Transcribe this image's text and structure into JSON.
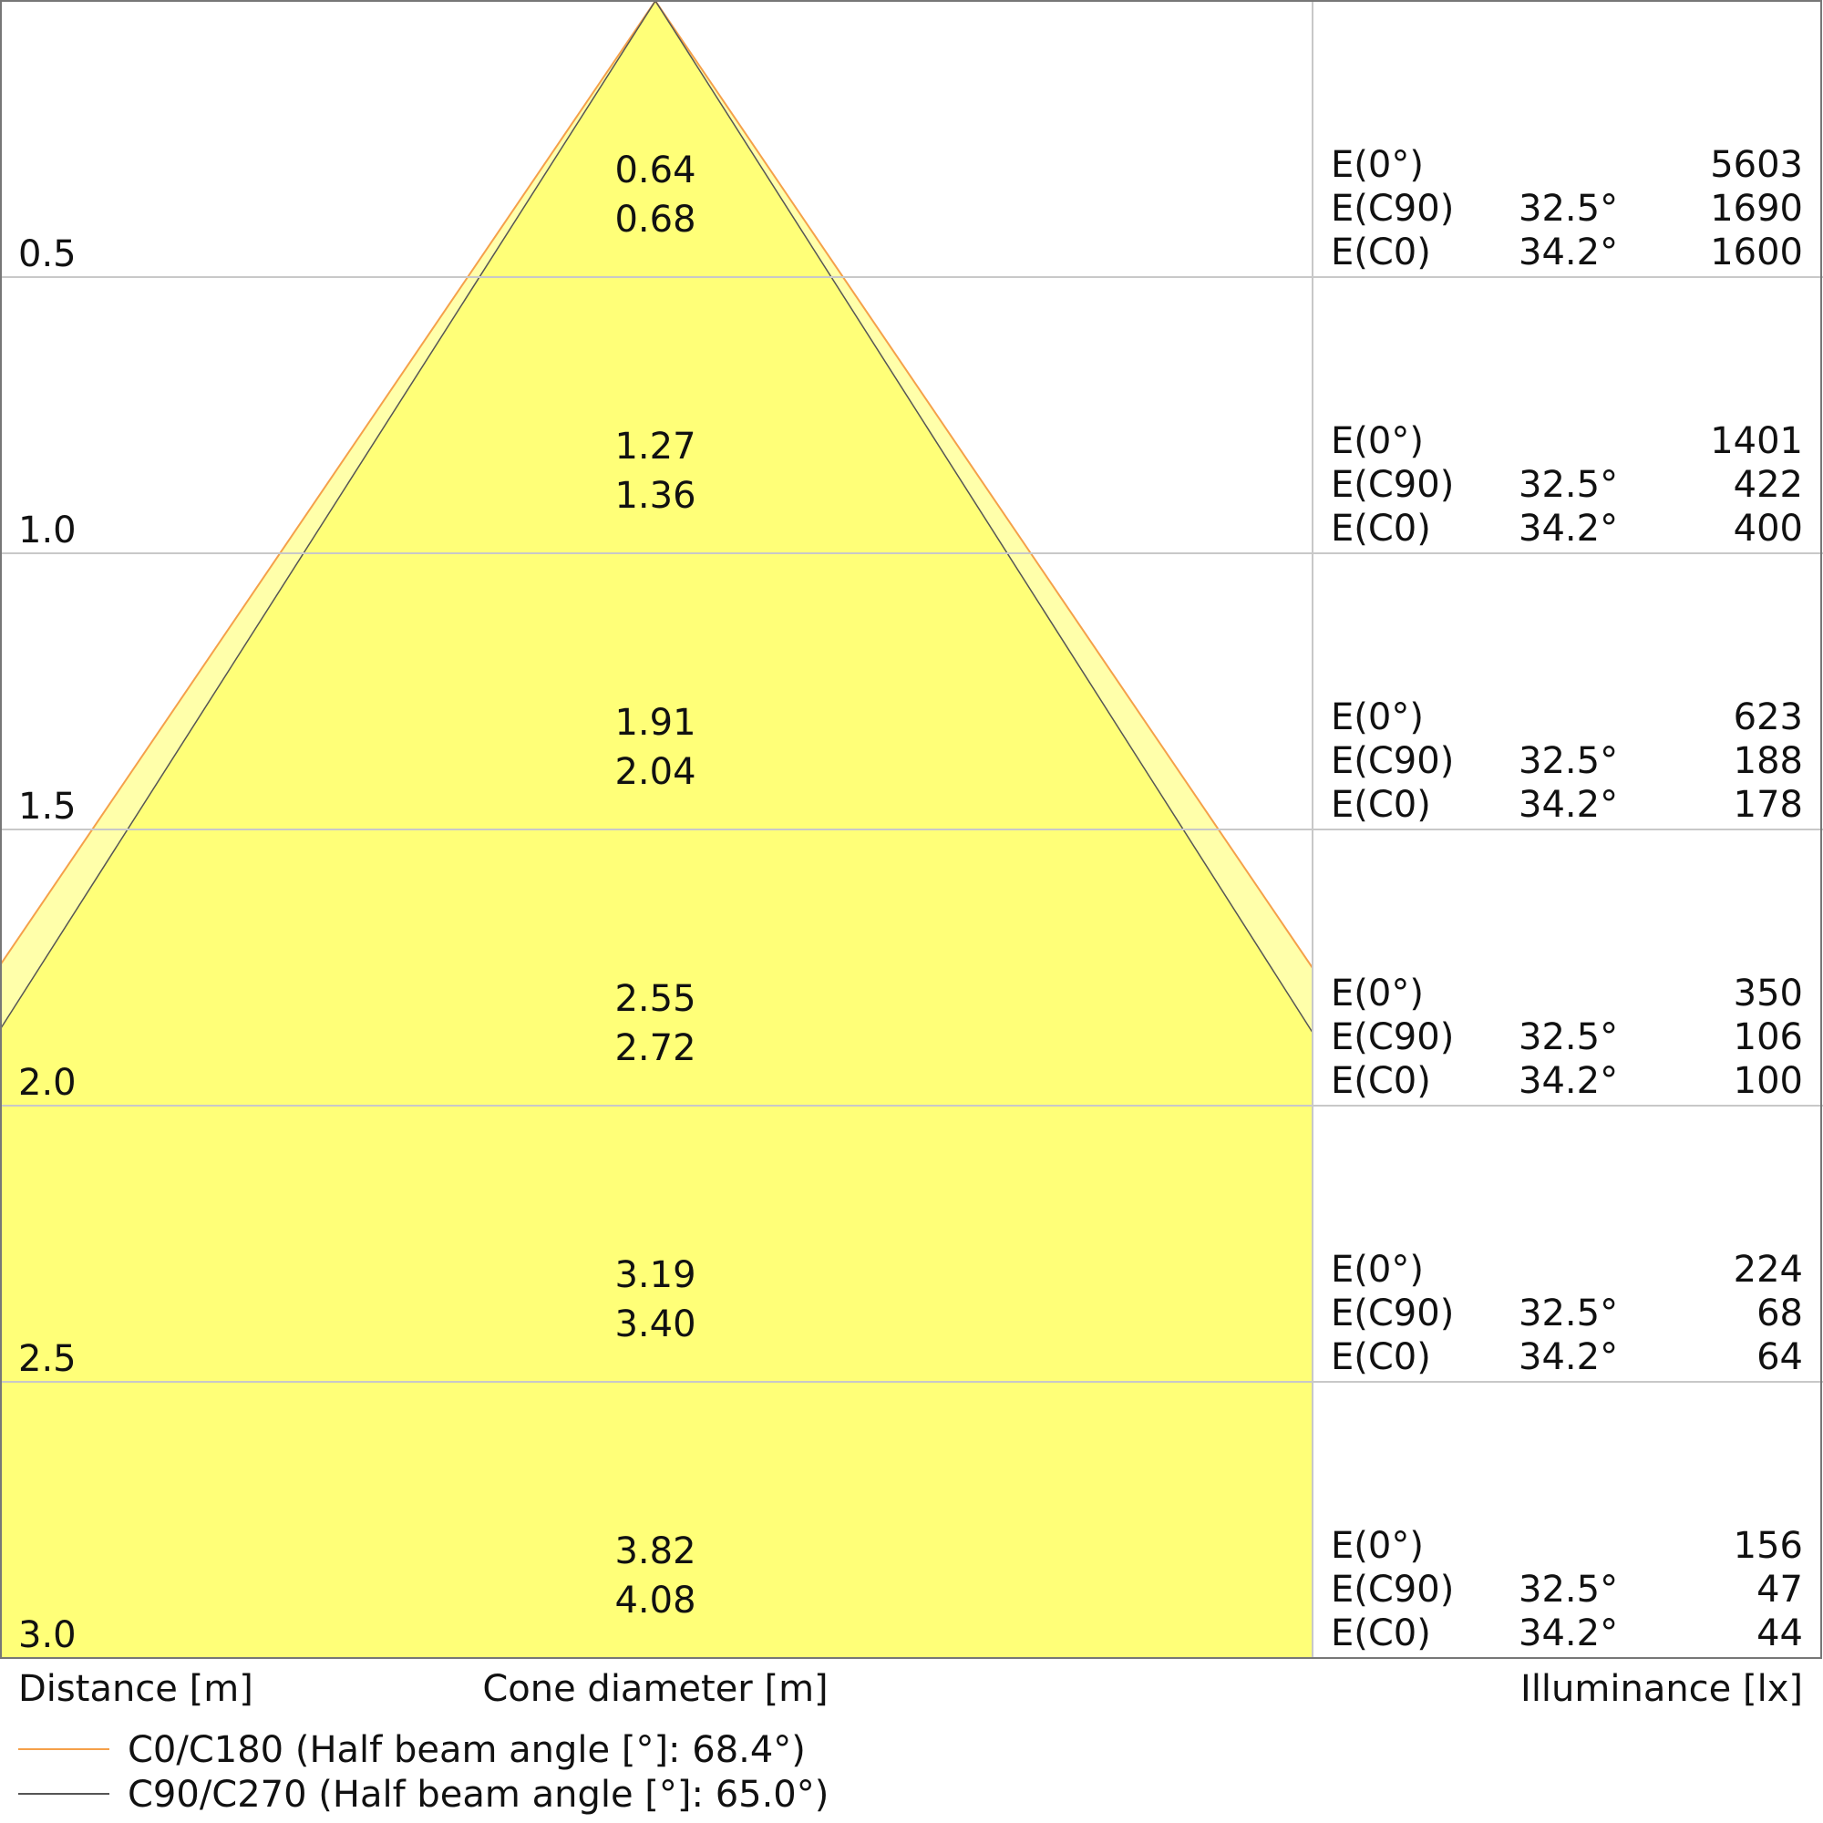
{
  "chart_data": {
    "type": "cone-diagram",
    "xlabel_left": "Distance [m]",
    "xlabel_center": "Cone diameter [m]",
    "xlabel_right": "Illuminance [lx]",
    "colors": {
      "c0": "#f5a04a",
      "c90": "#555555",
      "cone_outer": "#ffffaa",
      "cone_inner": "#ffff78",
      "grid": "#c8c8c8"
    },
    "legend": [
      {
        "label": "C0/C180 (Half beam angle [°]: 68.4°)",
        "color": "#f5a04a"
      },
      {
        "label": "C90/C270 (Half beam angle [°]: 65.0°)",
        "color": "#555555"
      }
    ],
    "half_beam_angles": {
      "c0": 68.4,
      "c90": 65.0
    },
    "rows": [
      {
        "distance": "0.5",
        "d_c90": "0.64",
        "d_c0": "0.68",
        "e0_label": "E(0°)",
        "e0": "5603",
        "ec90_label": "E(C90)",
        "ec90_angle": "32.5°",
        "ec90": "1690",
        "ec0_label": "E(C0)",
        "ec0_angle": "34.2°",
        "ec0": "1600"
      },
      {
        "distance": "1.0",
        "d_c90": "1.27",
        "d_c0": "1.36",
        "e0_label": "E(0°)",
        "e0": "1401",
        "ec90_label": "E(C90)",
        "ec90_angle": "32.5°",
        "ec90": "422",
        "ec0_label": "E(C0)",
        "ec0_angle": "34.2°",
        "ec0": "400"
      },
      {
        "distance": "1.5",
        "d_c90": "1.91",
        "d_c0": "2.04",
        "e0_label": "E(0°)",
        "e0": "623",
        "ec90_label": "E(C90)",
        "ec90_angle": "32.5°",
        "ec90": "188",
        "ec0_label": "E(C0)",
        "ec0_angle": "34.2°",
        "ec0": "178"
      },
      {
        "distance": "2.0",
        "d_c90": "2.55",
        "d_c0": "2.72",
        "e0_label": "E(0°)",
        "e0": "350",
        "ec90_label": "E(C90)",
        "ec90_angle": "32.5°",
        "ec90": "106",
        "ec0_label": "E(C0)",
        "ec0_angle": "34.2°",
        "ec0": "100"
      },
      {
        "distance": "2.5",
        "d_c90": "3.19",
        "d_c0": "3.40",
        "e0_label": "E(0°)",
        "e0": "224",
        "ec90_label": "E(C90)",
        "ec90_angle": "32.5°",
        "ec90": "68",
        "ec0_label": "E(C0)",
        "ec0_angle": "34.2°",
        "ec0": "64"
      },
      {
        "distance": "3.0",
        "d_c90": "3.82",
        "d_c0": "4.08",
        "e0_label": "E(0°)",
        "e0": "156",
        "ec90_label": "E(C90)",
        "ec90_angle": "32.5°",
        "ec90": "47",
        "ec0_label": "E(C0)",
        "ec0_angle": "34.2°",
        "ec0": "44"
      }
    ]
  }
}
